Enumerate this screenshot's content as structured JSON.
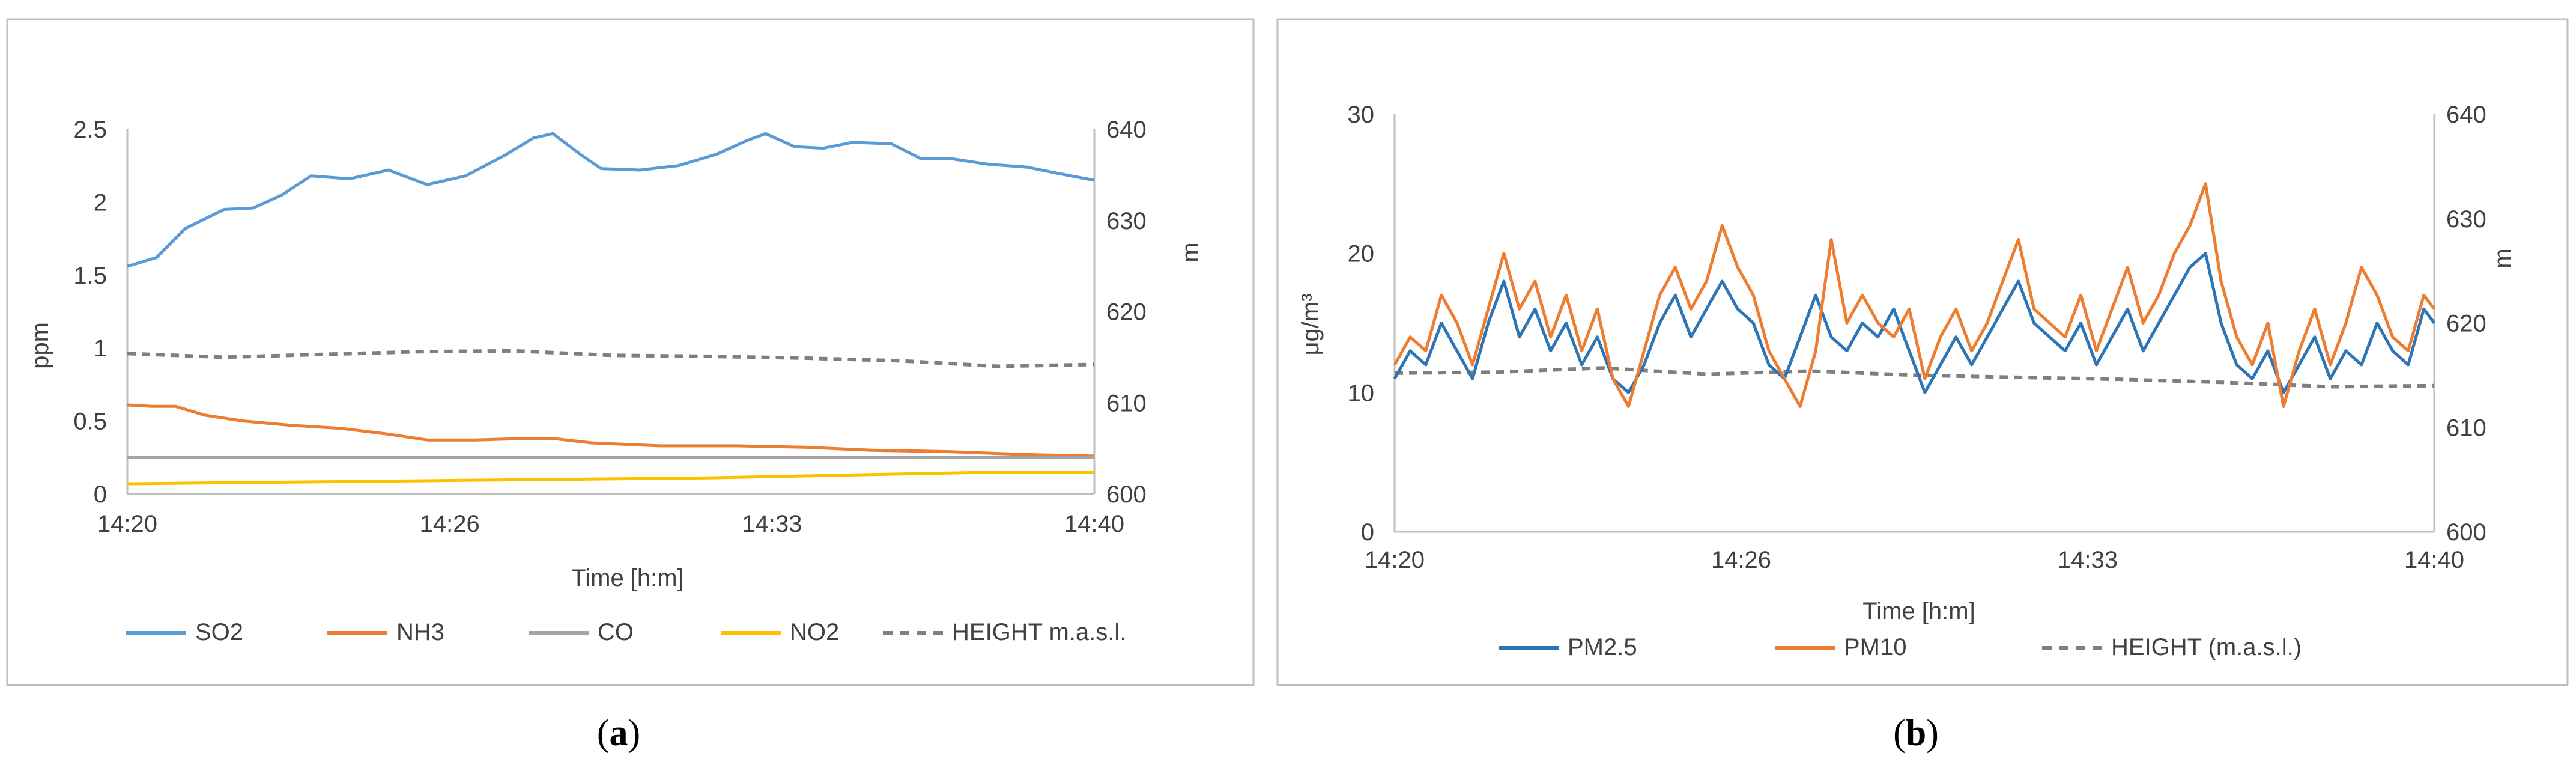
{
  "chart_data": [
    {
      "id": "a",
      "type": "line",
      "caption_open": "(",
      "caption_letter": "a",
      "caption_close": ")",
      "ylabel": "ppm",
      "y2label": "m",
      "xlabel": "Time [h:m]",
      "ylim": [
        0,
        2.5
      ],
      "y2lim": [
        600,
        640
      ],
      "yticks": [
        "0",
        "0.5",
        "1",
        "1.5",
        "2",
        "2.5"
      ],
      "y2ticks": [
        "600",
        "610",
        "620",
        "630",
        "640"
      ],
      "xticks": [
        "14:20",
        "14:26",
        "14:33",
        "14:40"
      ],
      "x_range_min": [
        0,
        20
      ],
      "series": [
        {
          "name": "SO2",
          "color": "#5B9BD5",
          "axis": "left",
          "style": "solid",
          "points": [
            [
              0,
              1.56
            ],
            [
              0.6,
              1.62
            ],
            [
              1.2,
              1.82
            ],
            [
              2,
              1.95
            ],
            [
              2.6,
              1.96
            ],
            [
              3.2,
              2.05
            ],
            [
              3.8,
              2.18
            ],
            [
              4.6,
              2.16
            ],
            [
              5.4,
              2.22
            ],
            [
              6.2,
              2.12
            ],
            [
              7,
              2.18
            ],
            [
              7.8,
              2.32
            ],
            [
              8.4,
              2.44
            ],
            [
              8.8,
              2.47
            ],
            [
              9.4,
              2.32
            ],
            [
              9.8,
              2.23
            ],
            [
              10.6,
              2.22
            ],
            [
              11.4,
              2.25
            ],
            [
              12.2,
              2.33
            ],
            [
              12.8,
              2.42
            ],
            [
              13.2,
              2.47
            ],
            [
              13.8,
              2.38
            ],
            [
              14.4,
              2.37
            ],
            [
              15,
              2.41
            ],
            [
              15.8,
              2.4
            ],
            [
              16.4,
              2.3
            ],
            [
              17,
              2.3
            ],
            [
              17.8,
              2.26
            ],
            [
              18.6,
              2.24
            ],
            [
              19.2,
              2.2
            ],
            [
              20,
              2.15
            ]
          ]
        },
        {
          "name": "NH3",
          "color": "#ED7D31",
          "axis": "left",
          "style": "solid",
          "points": [
            [
              0,
              0.61
            ],
            [
              0.5,
              0.6
            ],
            [
              1,
              0.6
            ],
            [
              1.6,
              0.54
            ],
            [
              2.4,
              0.5
            ],
            [
              3.4,
              0.47
            ],
            [
              4.4,
              0.45
            ],
            [
              5.4,
              0.41
            ],
            [
              6.2,
              0.37
            ],
            [
              7.2,
              0.37
            ],
            [
              8.2,
              0.38
            ],
            [
              8.8,
              0.38
            ],
            [
              9.6,
              0.35
            ],
            [
              11,
              0.33
            ],
            [
              12.6,
              0.33
            ],
            [
              14,
              0.32
            ],
            [
              15.4,
              0.3
            ],
            [
              17,
              0.29
            ],
            [
              18.6,
              0.27
            ],
            [
              20,
              0.26
            ]
          ]
        },
        {
          "name": "CO",
          "color": "#A5A5A5",
          "axis": "left",
          "style": "solid",
          "points": [
            [
              0,
              0.25
            ],
            [
              20,
              0.25
            ]
          ]
        },
        {
          "name": "NO2",
          "color": "#FFC000",
          "axis": "left",
          "style": "solid",
          "points": [
            [
              0,
              0.07
            ],
            [
              3,
              0.08
            ],
            [
              6,
              0.09
            ],
            [
              9,
              0.1
            ],
            [
              12,
              0.11
            ],
            [
              15,
              0.13
            ],
            [
              18,
              0.15
            ],
            [
              20,
              0.15
            ]
          ]
        },
        {
          "name": "HEIGHT m.a.s.l.",
          "color": "#7F7F7F",
          "axis": "right",
          "style": "dashed",
          "points": [
            [
              0,
              615.4
            ],
            [
              2,
              615
            ],
            [
              4,
              615.3
            ],
            [
              6,
              615.6
            ],
            [
              8,
              615.7
            ],
            [
              10,
              615.2
            ],
            [
              12,
              615.1
            ],
            [
              14,
              614.9
            ],
            [
              16,
              614.6
            ],
            [
              18,
              614
            ],
            [
              20,
              614.2
            ]
          ]
        }
      ]
    },
    {
      "id": "b",
      "type": "line",
      "caption_open": "(",
      "caption_letter": "b",
      "caption_close": ")",
      "ylabel": "μg/m³",
      "y2label": "m",
      "xlabel": "Time [h:m]",
      "ylim": [
        0,
        30
      ],
      "y2lim": [
        600,
        640
      ],
      "yticks": [
        "0",
        "10",
        "20",
        "30"
      ],
      "y2ticks": [
        "600",
        "610",
        "620",
        "630",
        "640"
      ],
      "xticks": [
        "14:20",
        "14:26",
        "14:33",
        "14:40"
      ],
      "x_range_min": [
        0,
        20
      ],
      "series": [
        {
          "name": "PM2.5",
          "color": "#2E75B6",
          "axis": "left",
          "style": "solid",
          "points": [
            [
              0,
              11
            ],
            [
              0.3,
              13
            ],
            [
              0.6,
              12
            ],
            [
              0.9,
              15
            ],
            [
              1.2,
              13
            ],
            [
              1.5,
              11
            ],
            [
              1.8,
              15
            ],
            [
              2.1,
              18
            ],
            [
              2.4,
              14
            ],
            [
              2.7,
              16
            ],
            [
              3,
              13
            ],
            [
              3.3,
              15
            ],
            [
              3.6,
              12
            ],
            [
              3.9,
              14
            ],
            [
              4.2,
              11
            ],
            [
              4.5,
              10
            ],
            [
              4.8,
              12
            ],
            [
              5.1,
              15
            ],
            [
              5.4,
              17
            ],
            [
              5.7,
              14
            ],
            [
              6,
              16
            ],
            [
              6.3,
              18
            ],
            [
              6.6,
              16
            ],
            [
              6.9,
              15
            ],
            [
              7.2,
              12
            ],
            [
              7.5,
              11
            ],
            [
              7.8,
              14
            ],
            [
              8.1,
              17
            ],
            [
              8.4,
              14
            ],
            [
              8.7,
              13
            ],
            [
              9,
              15
            ],
            [
              9.3,
              14
            ],
            [
              9.6,
              16
            ],
            [
              9.9,
              13
            ],
            [
              10.2,
              10
            ],
            [
              10.5,
              12
            ],
            [
              10.8,
              14
            ],
            [
              11.1,
              12
            ],
            [
              11.4,
              14
            ],
            [
              11.7,
              16
            ],
            [
              12,
              18
            ],
            [
              12.3,
              15
            ],
            [
              12.6,
              14
            ],
            [
              12.9,
              13
            ],
            [
              13.2,
              15
            ],
            [
              13.5,
              12
            ],
            [
              13.8,
              14
            ],
            [
              14.1,
              16
            ],
            [
              14.4,
              13
            ],
            [
              14.7,
              15
            ],
            [
              15,
              17
            ],
            [
              15.3,
              19
            ],
            [
              15.6,
              20
            ],
            [
              15.9,
              15
            ],
            [
              16.2,
              12
            ],
            [
              16.5,
              11
            ],
            [
              16.8,
              13
            ],
            [
              17.1,
              10
            ],
            [
              17.4,
              12
            ],
            [
              17.7,
              14
            ],
            [
              18,
              11
            ],
            [
              18.3,
              13
            ],
            [
              18.6,
              12
            ],
            [
              18.9,
              15
            ],
            [
              19.2,
              13
            ],
            [
              19.5,
              12
            ],
            [
              19.8,
              16
            ],
            [
              20,
              15
            ]
          ]
        },
        {
          "name": "PM10",
          "color": "#ED7D31",
          "axis": "left",
          "style": "solid",
          "points": [
            [
              0,
              12
            ],
            [
              0.3,
              14
            ],
            [
              0.6,
              13
            ],
            [
              0.9,
              17
            ],
            [
              1.2,
              15
            ],
            [
              1.5,
              12
            ],
            [
              1.8,
              16
            ],
            [
              2.1,
              20
            ],
            [
              2.4,
              16
            ],
            [
              2.7,
              18
            ],
            [
              3,
              14
            ],
            [
              3.3,
              17
            ],
            [
              3.6,
              13
            ],
            [
              3.9,
              16
            ],
            [
              4.2,
              11
            ],
            [
              4.5,
              9
            ],
            [
              4.8,
              13
            ],
            [
              5.1,
              17
            ],
            [
              5.4,
              19
            ],
            [
              5.7,
              16
            ],
            [
              6,
              18
            ],
            [
              6.3,
              22
            ],
            [
              6.6,
              19
            ],
            [
              6.9,
              17
            ],
            [
              7.2,
              13
            ],
            [
              7.5,
              11
            ],
            [
              7.8,
              9
            ],
            [
              8.1,
              13
            ],
            [
              8.4,
              21
            ],
            [
              8.7,
              15
            ],
            [
              9,
              17
            ],
            [
              9.3,
              15
            ],
            [
              9.6,
              14
            ],
            [
              9.9,
              16
            ],
            [
              10.2,
              11
            ],
            [
              10.5,
              14
            ],
            [
              10.8,
              16
            ],
            [
              11.1,
              13
            ],
            [
              11.4,
              15
            ],
            [
              11.7,
              18
            ],
            [
              12,
              21
            ],
            [
              12.3,
              16
            ],
            [
              12.6,
              15
            ],
            [
              12.9,
              14
            ],
            [
              13.2,
              17
            ],
            [
              13.5,
              13
            ],
            [
              13.8,
              16
            ],
            [
              14.1,
              19
            ],
            [
              14.4,
              15
            ],
            [
              14.7,
              17
            ],
            [
              15,
              20
            ],
            [
              15.3,
              22
            ],
            [
              15.6,
              25
            ],
            [
              15.9,
              18
            ],
            [
              16.2,
              14
            ],
            [
              16.5,
              12
            ],
            [
              16.8,
              15
            ],
            [
              17.1,
              9
            ],
            [
              17.4,
              13
            ],
            [
              17.7,
              16
            ],
            [
              18,
              12
            ],
            [
              18.3,
              15
            ],
            [
              18.6,
              19
            ],
            [
              18.9,
              17
            ],
            [
              19.2,
              14
            ],
            [
              19.5,
              13
            ],
            [
              19.8,
              17
            ],
            [
              20,
              16
            ]
          ]
        },
        {
          "name": "HEIGHT (m.a.s.l.)",
          "color": "#7F7F7F",
          "axis": "right",
          "style": "dashed",
          "points": [
            [
              0,
              615.2
            ],
            [
              2,
              615.3
            ],
            [
              4,
              615.7
            ],
            [
              6,
              615.1
            ],
            [
              8,
              615.4
            ],
            [
              10,
              615
            ],
            [
              12,
              614.8
            ],
            [
              14,
              614.6
            ],
            [
              16,
              614.3
            ],
            [
              18,
              613.9
            ],
            [
              20,
              614
            ]
          ]
        }
      ]
    }
  ]
}
